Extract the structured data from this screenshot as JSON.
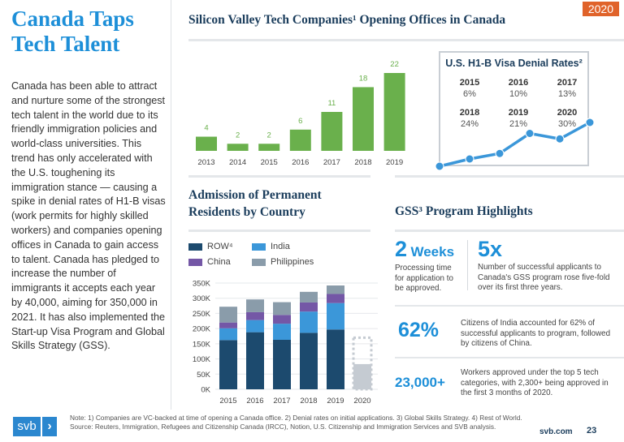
{
  "page": {
    "title": "Canada Taps Tech Talent",
    "year_badge": "2020",
    "body": "Canada has been able to attract and nurture some of the strongest tech talent in the world due to its friendly immigration policies and world-class universities. This trend has only accelerated with the U.S. toughening its immigration stance — causing a spike in denial rates of H1-B visas (work permits for highly skilled workers) and companies opening offices in Canada to gain access to talent. Canada has pledged to increase the number of immigrants it accepts each year by 40,000, aiming for 350,000 in 2021. It has also implemented the Start-up Visa Program and Global Skills Strategy (GSS)."
  },
  "colors": {
    "accent": "#1d8fd8",
    "green": "#6ab04c",
    "badge": "#e0632a",
    "row": "#1c4a6e",
    "india": "#3b97d9",
    "china": "#7457a6",
    "philippines": "#8a9caa",
    "projection": "#c5cbd2"
  },
  "chart_data": [
    {
      "type": "bar",
      "title": "Silicon Valley Tech Companies¹ Opening Offices in Canada",
      "categories": [
        "2013",
        "2014",
        "2015",
        "2016",
        "2017",
        "2018",
        "2019"
      ],
      "values": [
        4,
        2,
        2,
        6,
        11,
        18,
        22
      ],
      "data_labels": true,
      "grid": false
    },
    {
      "type": "line",
      "title": "U.S. H1-B Visa Denial Rates²",
      "x": [
        "2015",
        "2016",
        "2017",
        "2018",
        "2019",
        "2020"
      ],
      "values": [
        "6%",
        "10%",
        "13%",
        "24%",
        "21%",
        "30%"
      ],
      "y": [
        6,
        10,
        13,
        24,
        21,
        30
      ]
    },
    {
      "type": "bar",
      "stacked": true,
      "title": "Admission of Permanent Residents by Country",
      "categories": [
        "2015",
        "2016",
        "2017",
        "2018",
        "2019",
        "2020"
      ],
      "yticks": [
        "0K",
        "50K",
        "100K",
        "150K",
        "200K",
        "250K",
        "300K",
        "350K"
      ],
      "ylim": [
        0,
        350000
      ],
      "grid": true,
      "legend": "top-left",
      "series": [
        {
          "name": "ROW⁴",
          "values": [
            162000,
            188000,
            163000,
            186000,
            197000,
            83000
          ]
        },
        {
          "name": "India",
          "values": [
            39000,
            40000,
            53000,
            70000,
            87000,
            null
          ]
        },
        {
          "name": "China",
          "values": [
            19000,
            26000,
            29000,
            30000,
            30000,
            null
          ]
        },
        {
          "name": "Philippines",
          "values": [
            52000,
            42000,
            42000,
            35000,
            28000,
            null
          ]
        }
      ],
      "projection_2020": 170000
    }
  ],
  "gss": {
    "title": "GSS³ Program Highlights",
    "items": [
      {
        "big": "2",
        "unit": "Weeks",
        "text": "Processing time for application to be approved."
      },
      {
        "big": "5x",
        "text": "Number of successful applicants to Canada's GSS program rose five-fold over its first three years."
      },
      {
        "big": "62%",
        "text": "Citizens of India accounted for 62% of successful applicants to program, followed by citizens of China."
      },
      {
        "big": "23,000+",
        "text": "Workers approved under the top 5 tech categories, with 2,300+ being approved in the first 3 months of 2020."
      }
    ]
  },
  "footer": {
    "logo": "svb",
    "note": "Note: 1) Companies are VC-backed at time of opening a Canada office. 2) Denial rates on initial applications. 3) Global Skills Strategy. 4) Rest of World.",
    "source": "Source: Reuters, Immigration, Refugees and Citizenship Canada (IRCC), Notion, U.S. Citizenship and Immigration Services and SVB analysis.",
    "site": "svb.com",
    "page": "23"
  }
}
